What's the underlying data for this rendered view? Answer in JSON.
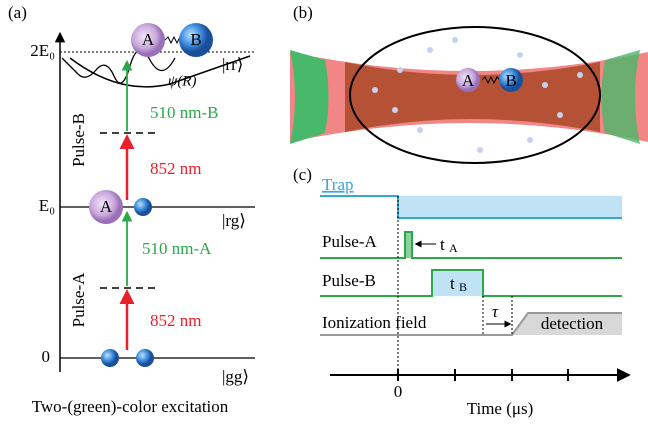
{
  "panel_a": {
    "label": "(a)",
    "levels": [
      "2E₀",
      "E₀",
      "0"
    ],
    "states": [
      "|rr⟩",
      "|rg⟩",
      "|gg⟩"
    ],
    "atom_a_top": "A",
    "atom_b_top": "B",
    "atom_a_mid": "A",
    "potential": "ψ(R)",
    "pulse_b": "Pulse-B",
    "pulse_a": "Pulse-A",
    "green_b": "510 nm-B",
    "red_b": "852 nm",
    "green_a": "510 nm-A",
    "red_a": "852 nm",
    "caption": "Two-(green)-color excitation"
  },
  "panel_b": {
    "label": "(b)",
    "atom_a": "A",
    "atom_b": "B"
  },
  "panel_c": {
    "label": "(c)",
    "trap": "Trap",
    "pulse_a": "Pulse-A",
    "t_a": {
      "main": "t",
      "sub": "A"
    },
    "pulse_b": "Pulse-B",
    "t_b": {
      "main": "t",
      "sub": "B"
    },
    "ionization": "Ionization field",
    "tau": "τ",
    "detection": "detection",
    "zero": "0",
    "axis": "Time (μs)"
  }
}
